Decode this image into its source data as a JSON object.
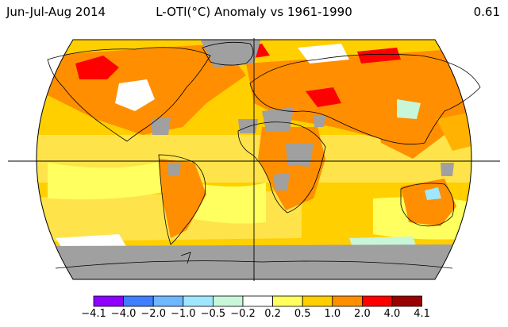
{
  "header": {
    "period": "Jun-Jul-Aug 2014",
    "title": "L-OTI(°C) Anomaly vs 1961-1990",
    "global_mean": "0.61"
  },
  "colors": {
    "no_data": "#a0a0a0",
    "map_base": "#ffd400"
  },
  "legend": {
    "labels": [
      "−4.1",
      "−4.0",
      "−2.0",
      "−1.0",
      "−0.5",
      "−0.2",
      "0.2",
      "0.5",
      "1.0",
      "2.0",
      "4.0",
      "4.1"
    ],
    "colors": [
      "#8f00ff",
      "#3f7fff",
      "#6fb7ff",
      "#9fe7ff",
      "#c7f7d8",
      "#ffffff",
      "#ffff5f",
      "#ffcf00",
      "#ff8f00",
      "#ff0000",
      "#990000"
    ]
  }
}
